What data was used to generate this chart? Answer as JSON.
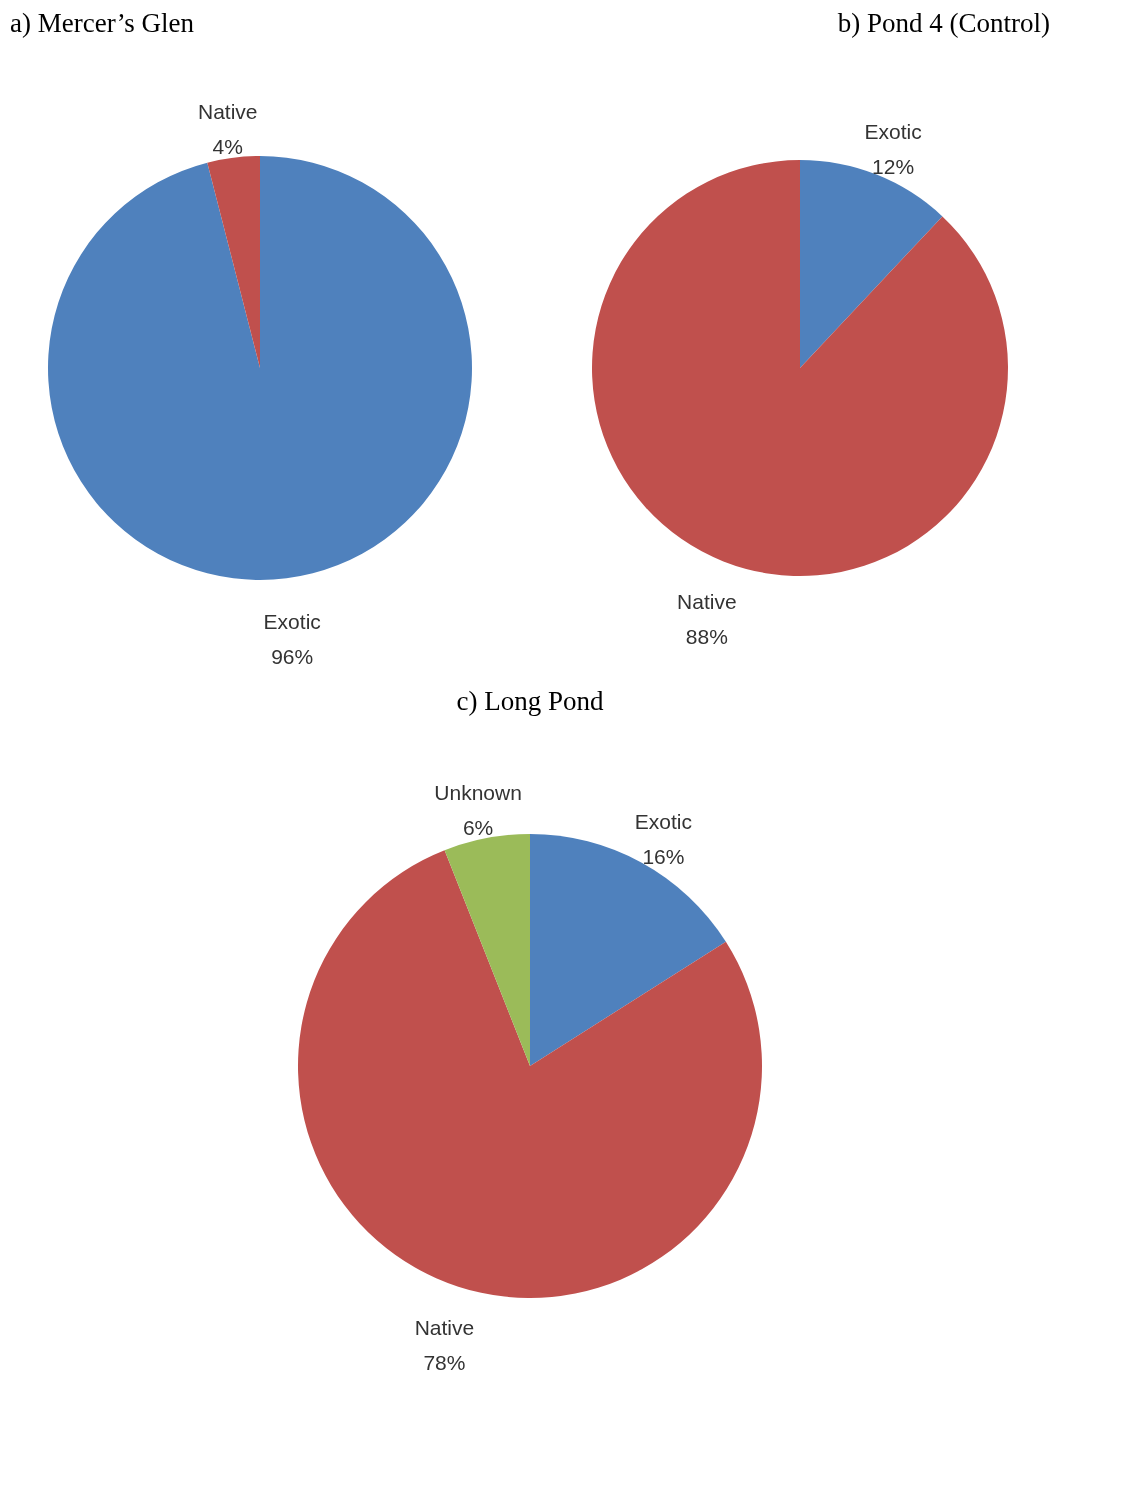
{
  "chart_data": [
    {
      "type": "pie",
      "title": "a) Mercer’s Glen",
      "categories": [
        "Exotic",
        "Native"
      ],
      "values": [
        96,
        4
      ],
      "value_labels": [
        "96%",
        "4%"
      ],
      "colors": [
        "#4f81bd",
        "#c0504d"
      ],
      "legend": false
    },
    {
      "type": "pie",
      "title": "b) Pond 4 (Control)",
      "categories": [
        "Exotic",
        "Native"
      ],
      "values": [
        12,
        88
      ],
      "value_labels": [
        "12%",
        "88%"
      ],
      "colors": [
        "#4f81bd",
        "#c0504d"
      ],
      "legend": false
    },
    {
      "type": "pie",
      "title": "c) Long Pond",
      "categories": [
        "Exotic",
        "Native",
        "Unknown"
      ],
      "values": [
        16,
        78,
        6
      ],
      "value_labels": [
        "16%",
        "78%",
        "6%"
      ],
      "colors": [
        "#4f81bd",
        "#c0504d",
        "#9bbb59"
      ],
      "legend": false
    }
  ]
}
